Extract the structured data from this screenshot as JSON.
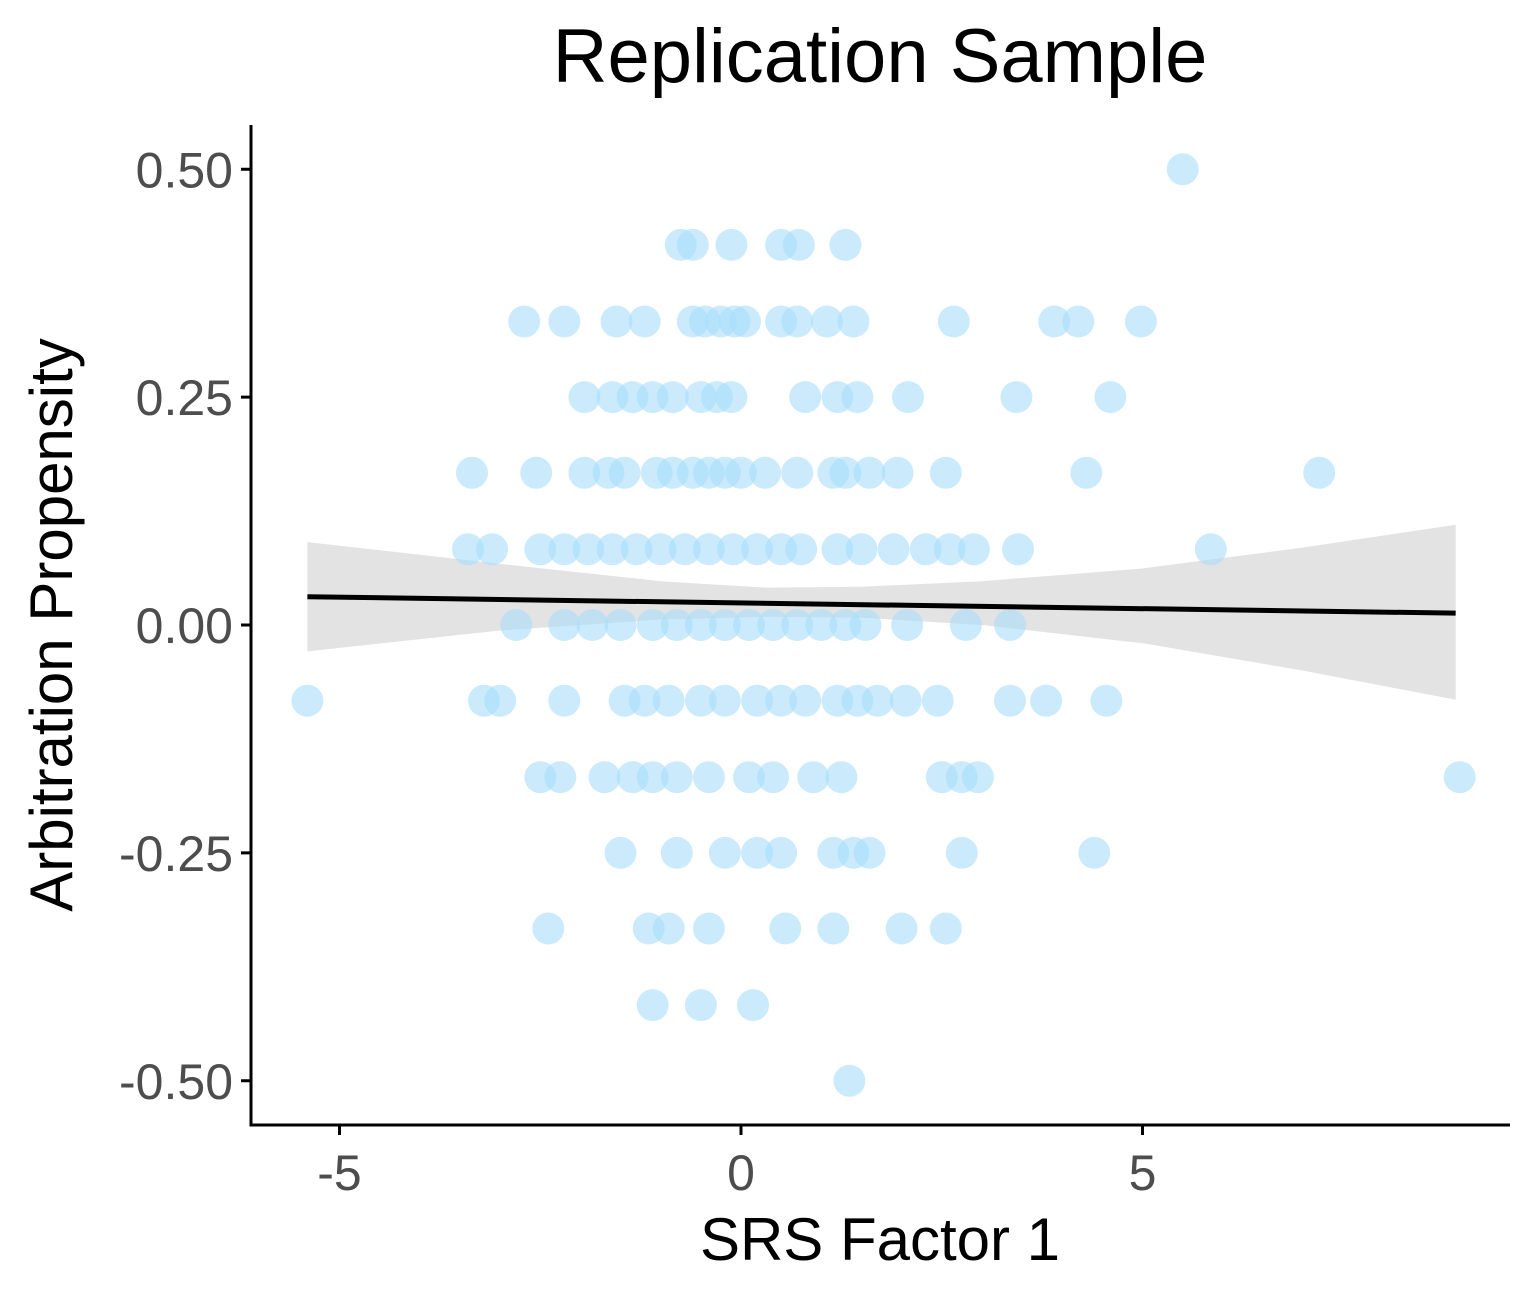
{
  "chart_data": {
    "type": "scatter",
    "title": "Replication Sample",
    "xlabel": "SRS Factor 1",
    "ylabel": "Arbitration Propensity",
    "xlim": [
      -6.15,
      9.5
    ],
    "ylim": [
      -0.55,
      0.55
    ],
    "xticks": [
      -5,
      0,
      5
    ],
    "xtick_labels": [
      "-5",
      "0",
      "5"
    ],
    "yticks": [
      -0.5,
      -0.25,
      0,
      0.25,
      0.5
    ],
    "ytick_labels": [
      "-0.50",
      "-0.25",
      "0.00",
      "0.25",
      "0.50"
    ],
    "grid": false,
    "legend": "none",
    "colors": {
      "points": "#a9ddfb",
      "fit_line": "#000000",
      "confidence_band": "#d9d9d9",
      "axis": "#000000",
      "tick_label": "#4d4d4d"
    },
    "points": [
      [
        5.5,
        0.5
      ],
      [
        -0.75,
        0.417
      ],
      [
        -0.6,
        0.417
      ],
      [
        -0.12,
        0.417
      ],
      [
        0.5,
        0.417
      ],
      [
        0.72,
        0.417
      ],
      [
        1.3,
        0.417
      ],
      [
        -2.7,
        0.333
      ],
      [
        -2.2,
        0.333
      ],
      [
        -1.55,
        0.333
      ],
      [
        -1.2,
        0.333
      ],
      [
        -0.6,
        0.333
      ],
      [
        -0.45,
        0.333
      ],
      [
        -0.25,
        0.333
      ],
      [
        -0.08,
        0.333
      ],
      [
        0.05,
        0.333
      ],
      [
        0.5,
        0.333
      ],
      [
        0.7,
        0.333
      ],
      [
        1.07,
        0.333
      ],
      [
        1.4,
        0.333
      ],
      [
        2.65,
        0.333
      ],
      [
        3.9,
        0.333
      ],
      [
        4.2,
        0.333
      ],
      [
        4.98,
        0.333
      ],
      [
        -1.95,
        0.25
      ],
      [
        -1.6,
        0.25
      ],
      [
        -1.35,
        0.25
      ],
      [
        -1.1,
        0.25
      ],
      [
        -0.85,
        0.25
      ],
      [
        -0.5,
        0.25
      ],
      [
        -0.3,
        0.25
      ],
      [
        -0.12,
        0.25
      ],
      [
        0.8,
        0.25
      ],
      [
        1.2,
        0.25
      ],
      [
        1.45,
        0.25
      ],
      [
        2.08,
        0.25
      ],
      [
        3.43,
        0.25
      ],
      [
        4.6,
        0.25
      ],
      [
        -3.35,
        0.167
      ],
      [
        -2.55,
        0.167
      ],
      [
        -1.95,
        0.167
      ],
      [
        -1.65,
        0.167
      ],
      [
        -1.45,
        0.167
      ],
      [
        -1.05,
        0.167
      ],
      [
        -0.85,
        0.167
      ],
      [
        -0.6,
        0.167
      ],
      [
        -0.4,
        0.167
      ],
      [
        -0.2,
        0.167
      ],
      [
        0,
        0.167
      ],
      [
        0.3,
        0.167
      ],
      [
        0.7,
        0.167
      ],
      [
        1.15,
        0.167
      ],
      [
        1.3,
        0.167
      ],
      [
        1.6,
        0.167
      ],
      [
        1.95,
        0.167
      ],
      [
        2.55,
        0.167
      ],
      [
        4.3,
        0.167
      ],
      [
        7.2,
        0.167
      ],
      [
        -3.4,
        0.083
      ],
      [
        -3.1,
        0.083
      ],
      [
        -2.5,
        0.083
      ],
      [
        -2.2,
        0.083
      ],
      [
        -1.9,
        0.083
      ],
      [
        -1.6,
        0.083
      ],
      [
        -1.3,
        0.083
      ],
      [
        -1.0,
        0.083
      ],
      [
        -0.7,
        0.083
      ],
      [
        -0.4,
        0.083
      ],
      [
        -0.1,
        0.083
      ],
      [
        0.2,
        0.083
      ],
      [
        0.5,
        0.083
      ],
      [
        0.75,
        0.083
      ],
      [
        1.2,
        0.083
      ],
      [
        1.5,
        0.083
      ],
      [
        1.9,
        0.083
      ],
      [
        2.3,
        0.083
      ],
      [
        2.6,
        0.083
      ],
      [
        2.9,
        0.083
      ],
      [
        3.45,
        0.083
      ],
      [
        5.85,
        0.083
      ],
      [
        -2.8,
        0
      ],
      [
        -2.2,
        0
      ],
      [
        -1.85,
        0
      ],
      [
        -1.5,
        0
      ],
      [
        -1.1,
        0
      ],
      [
        -0.8,
        0
      ],
      [
        -0.5,
        0
      ],
      [
        -0.2,
        0
      ],
      [
        0.1,
        0
      ],
      [
        0.4,
        0
      ],
      [
        0.7,
        0
      ],
      [
        1.0,
        0
      ],
      [
        1.3,
        0
      ],
      [
        1.55,
        0
      ],
      [
        2.07,
        0
      ],
      [
        2.8,
        0
      ],
      [
        3.35,
        0
      ],
      [
        -5.4,
        -0.083
      ],
      [
        -3.2,
        -0.083
      ],
      [
        -3.0,
        -0.083
      ],
      [
        -2.2,
        -0.083
      ],
      [
        -1.45,
        -0.083
      ],
      [
        -1.2,
        -0.083
      ],
      [
        -0.9,
        -0.083
      ],
      [
        -0.5,
        -0.083
      ],
      [
        -0.2,
        -0.083
      ],
      [
        0.2,
        -0.083
      ],
      [
        0.5,
        -0.083
      ],
      [
        0.8,
        -0.083
      ],
      [
        1.2,
        -0.083
      ],
      [
        1.45,
        -0.083
      ],
      [
        1.7,
        -0.083
      ],
      [
        2.05,
        -0.083
      ],
      [
        2.45,
        -0.083
      ],
      [
        3.35,
        -0.083
      ],
      [
        3.8,
        -0.083
      ],
      [
        4.55,
        -0.083
      ],
      [
        -2.5,
        -0.167
      ],
      [
        -2.25,
        -0.167
      ],
      [
        -1.7,
        -0.167
      ],
      [
        -1.35,
        -0.167
      ],
      [
        -1.1,
        -0.167
      ],
      [
        -0.8,
        -0.167
      ],
      [
        -0.4,
        -0.167
      ],
      [
        0.1,
        -0.167
      ],
      [
        0.4,
        -0.167
      ],
      [
        0.9,
        -0.167
      ],
      [
        1.25,
        -0.167
      ],
      [
        2.5,
        -0.167
      ],
      [
        2.75,
        -0.167
      ],
      [
        2.95,
        -0.167
      ],
      [
        8.95,
        -0.167
      ],
      [
        -1.5,
        -0.25
      ],
      [
        -0.8,
        -0.25
      ],
      [
        -0.2,
        -0.25
      ],
      [
        0.2,
        -0.25
      ],
      [
        0.5,
        -0.25
      ],
      [
        1.15,
        -0.25
      ],
      [
        1.4,
        -0.25
      ],
      [
        1.6,
        -0.25
      ],
      [
        2.75,
        -0.25
      ],
      [
        4.4,
        -0.25
      ],
      [
        -2.4,
        -0.333
      ],
      [
        -1.15,
        -0.333
      ],
      [
        -0.9,
        -0.333
      ],
      [
        -0.4,
        -0.333
      ],
      [
        0.55,
        -0.333
      ],
      [
        1.15,
        -0.333
      ],
      [
        2.0,
        -0.333
      ],
      [
        2.55,
        -0.333
      ],
      [
        -1.1,
        -0.417
      ],
      [
        -0.5,
        -0.417
      ],
      [
        0.15,
        -0.417
      ],
      [
        1.35,
        -0.5
      ]
    ],
    "fit_line": {
      "x": [
        -5.4,
        8.9
      ],
      "y": [
        0.031,
        0.013
      ]
    },
    "confidence_band": {
      "x": [
        -5.4,
        -3.0,
        -1.0,
        0.3,
        1.5,
        3.0,
        5.0,
        7.0,
        8.9
      ],
      "lower": [
        -0.029,
        -0.006,
        0.006,
        0.009,
        0.008,
        0.0,
        -0.02,
        -0.05,
        -0.082
      ],
      "upper": [
        0.091,
        0.067,
        0.048,
        0.041,
        0.042,
        0.048,
        0.062,
        0.085,
        0.11
      ]
    }
  }
}
